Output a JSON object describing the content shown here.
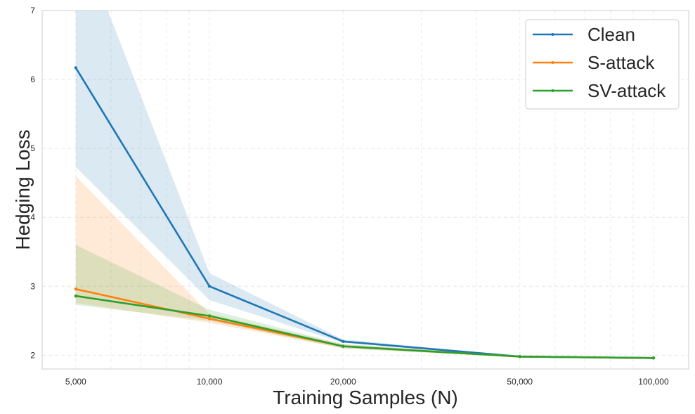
{
  "chart_data": {
    "type": "line",
    "title": "",
    "xlabel": "Training Samples (N)",
    "ylabel": "Hedging Loss",
    "x_scale": "log",
    "x": [
      5000,
      10000,
      20000,
      50000,
      100000
    ],
    "x_tick_labels": [
      "5,000",
      "10,000",
      "20,000",
      "50,000",
      "100,000"
    ],
    "xlim": [
      4200,
      120000
    ],
    "ylim": [
      1.8,
      7
    ],
    "y_ticks": [
      2,
      3,
      4,
      5,
      6,
      7
    ],
    "grid": true,
    "legend_position": "top-right",
    "series": [
      {
        "name": "Clean",
        "color": "#1f77b4",
        "values": [
          6.17,
          3.0,
          2.2,
          1.98,
          1.96
        ],
        "band_low": [
          4.73,
          2.8,
          2.18,
          1.97,
          1.95
        ],
        "band_high": [
          8.2,
          3.19,
          2.23,
          1.99,
          1.97
        ]
      },
      {
        "name": "S-attack",
        "color": "#ff7f0e",
        "values": [
          2.96,
          2.53,
          2.13,
          1.98,
          1.96
        ],
        "band_low": [
          2.76,
          2.47,
          2.1,
          1.97,
          1.95
        ],
        "band_high": [
          4.6,
          2.6,
          2.16,
          1.99,
          1.97
        ]
      },
      {
        "name": "SV-attack",
        "color": "#2ca02c",
        "values": [
          2.86,
          2.57,
          2.13,
          1.98,
          1.96
        ],
        "band_low": [
          2.73,
          2.5,
          2.1,
          1.97,
          1.95
        ],
        "band_high": [
          3.6,
          2.66,
          2.16,
          1.99,
          1.97
        ]
      }
    ]
  }
}
